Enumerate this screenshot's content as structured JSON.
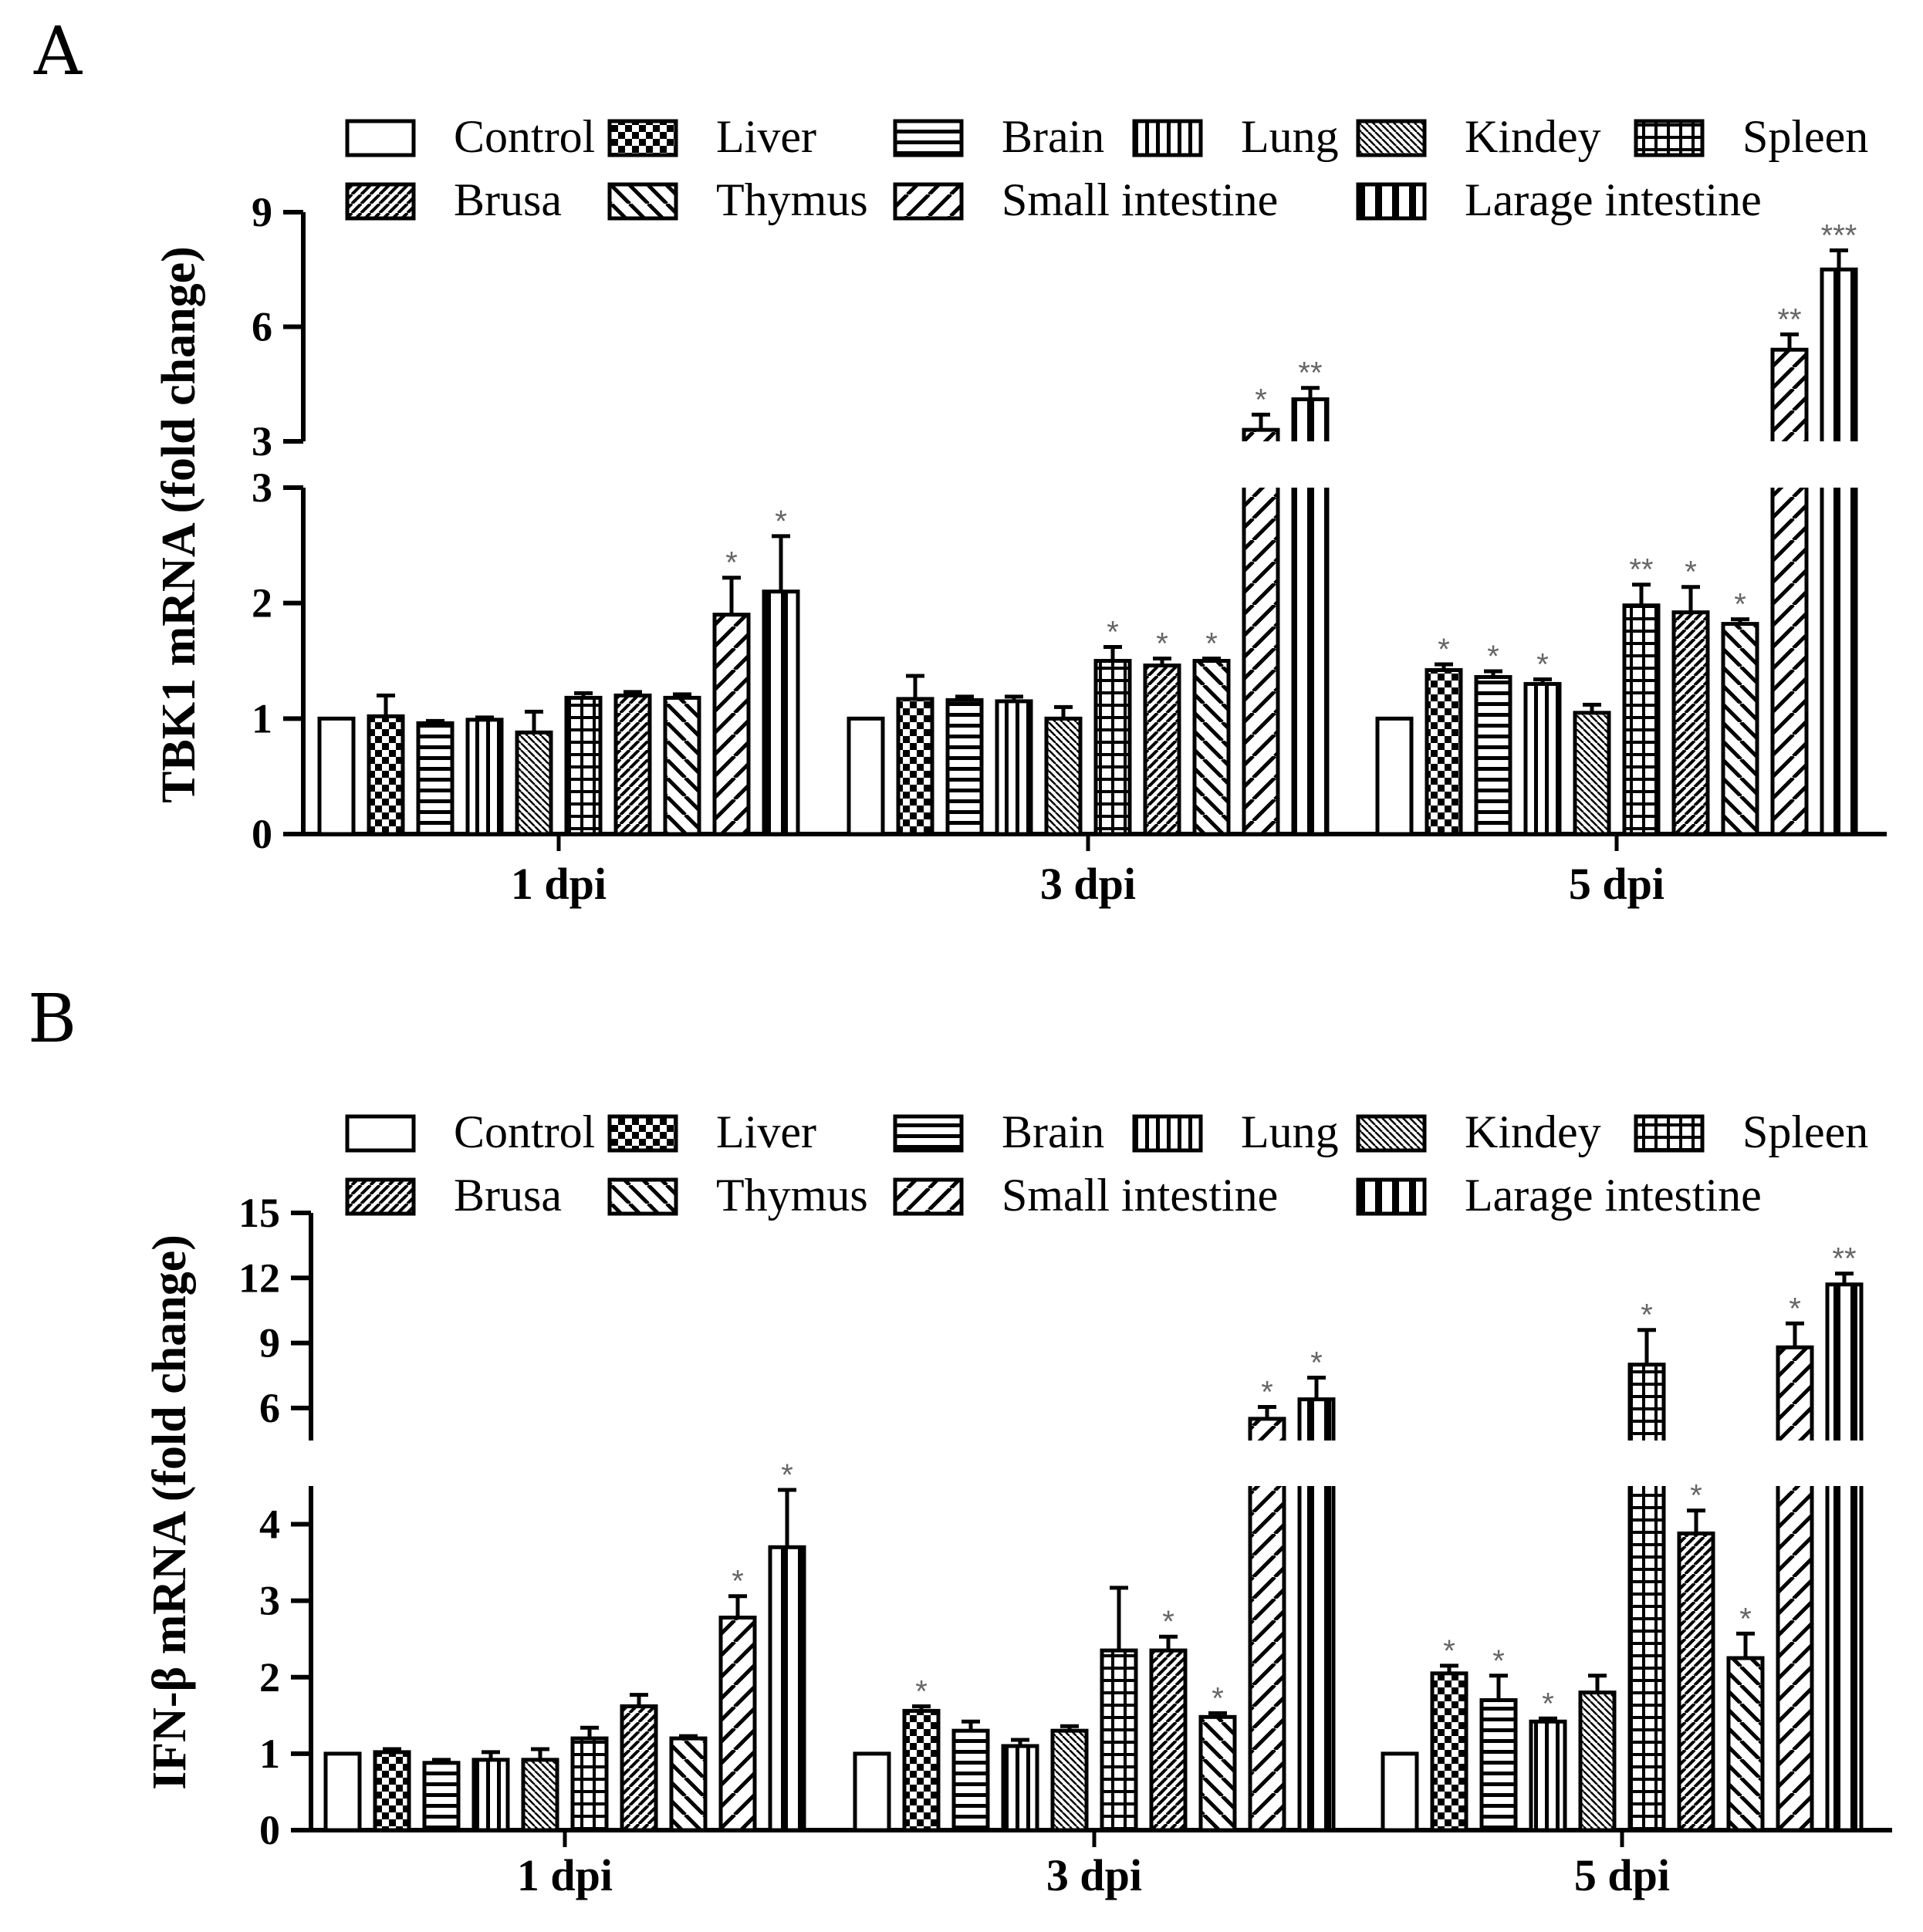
{
  "categories": [
    "1 dpi",
    "3 dpi",
    "5 dpi"
  ],
  "legend": [
    {
      "name": "Control",
      "pattern": "blank"
    },
    {
      "name": "Liver",
      "pattern": "checker"
    },
    {
      "name": "Brain",
      "pattern": "hlines"
    },
    {
      "name": "Lung",
      "pattern": "vlines"
    },
    {
      "name": "Kindey",
      "pattern": "diagfine"
    },
    {
      "name": "Spleen",
      "pattern": "grid"
    },
    {
      "name": "Brusa",
      "pattern": "diagdense"
    },
    {
      "name": "Thymus",
      "pattern": "back"
    },
    {
      "name": "Small intestine",
      "pattern": "fwd"
    },
    {
      "name": "Larage intestine",
      "pattern": "vthick"
    }
  ],
  "chart_data": [
    {
      "panel": "A",
      "type": "bar",
      "ylabel": "TBK1 mRNA (fold change)",
      "categories": [
        "1 dpi",
        "3 dpi",
        "5 dpi"
      ],
      "lower_axis": {
        "ylim": [
          0,
          3
        ],
        "ticks": [
          "0",
          "1",
          "2",
          "3"
        ]
      },
      "upper_axis": {
        "ylim": [
          3,
          9
        ],
        "ticks": [
          "3",
          "6",
          "9"
        ]
      },
      "series": [
        {
          "name": "Control",
          "values": [
            1.0,
            1.0,
            1.0
          ],
          "errors": [
            0,
            0,
            0
          ],
          "sig": [
            "",
            "",
            ""
          ]
        },
        {
          "name": "Liver",
          "values": [
            1.02,
            1.17,
            1.42
          ],
          "errors": [
            0.18,
            0.2,
            0.05
          ],
          "sig": [
            "",
            "",
            "*"
          ]
        },
        {
          "name": "Brain",
          "values": [
            0.96,
            1.16,
            1.36
          ],
          "errors": [
            0.02,
            0.03,
            0.05
          ],
          "sig": [
            "",
            "",
            "*"
          ]
        },
        {
          "name": "Lung",
          "values": [
            0.99,
            1.15,
            1.3
          ],
          "errors": [
            0.02,
            0.04,
            0.04
          ],
          "sig": [
            "",
            "",
            "*"
          ]
        },
        {
          "name": "Kindey",
          "values": [
            0.88,
            1.0,
            1.05
          ],
          "errors": [
            0.18,
            0.1,
            0.07
          ],
          "sig": [
            "",
            "",
            ""
          ]
        },
        {
          "name": "Spleen",
          "values": [
            1.18,
            1.5,
            1.98
          ],
          "errors": [
            0.04,
            0.12,
            0.18
          ],
          "sig": [
            "",
            "*",
            "**"
          ]
        },
        {
          "name": "Brusa",
          "values": [
            1.2,
            1.46,
            1.92
          ],
          "errors": [
            0.03,
            0.06,
            0.22
          ],
          "sig": [
            "",
            "*",
            "*"
          ]
        },
        {
          "name": "Thymus",
          "values": [
            1.18,
            1.5,
            1.82
          ],
          "errors": [
            0.03,
            0.02,
            0.04
          ],
          "sig": [
            "",
            "*",
            "*"
          ]
        },
        {
          "name": "Small intestine",
          "values": [
            1.9,
            3.3,
            5.4
          ],
          "errors": [
            0.32,
            0.4,
            0.4
          ],
          "sig": [
            "*",
            "*",
            "**"
          ]
        },
        {
          "name": "Larage intestine",
          "values": [
            2.1,
            4.1,
            7.5
          ],
          "errors": [
            0.48,
            0.3,
            0.5
          ],
          "sig": [
            "*",
            "**",
            "***"
          ]
        }
      ]
    },
    {
      "panel": "B",
      "type": "bar",
      "ylabel": "IFN-β mRNA (fold change)",
      "categories": [
        "1 dpi",
        "3 dpi",
        "5 dpi"
      ],
      "lower_axis": {
        "ylim": [
          0,
          4.5
        ],
        "ticks": [
          "0",
          "1",
          "2",
          "3",
          "4"
        ]
      },
      "upper_axis": {
        "ylim": [
          4.5,
          15
        ],
        "ticks": [
          "6",
          "9",
          "12",
          "15"
        ]
      },
      "series": [
        {
          "name": "Control",
          "values": [
            1.0,
            1.0,
            1.0
          ],
          "errors": [
            0,
            0,
            0
          ],
          "sig": [
            "",
            "",
            ""
          ]
        },
        {
          "name": "Liver",
          "values": [
            1.02,
            1.56,
            2.05
          ],
          "errors": [
            0.04,
            0.06,
            0.1
          ],
          "sig": [
            "",
            "*",
            "*"
          ]
        },
        {
          "name": "Brain",
          "values": [
            0.88,
            1.3,
            1.7
          ],
          "errors": [
            0.04,
            0.12,
            0.32
          ],
          "sig": [
            "",
            "",
            "*"
          ]
        },
        {
          "name": "Lung",
          "values": [
            0.92,
            1.1,
            1.42
          ],
          "errors": [
            0.1,
            0.08,
            0.04
          ],
          "sig": [
            "",
            "",
            "*"
          ]
        },
        {
          "name": "Kindey",
          "values": [
            0.92,
            1.3,
            1.8
          ],
          "errors": [
            0.14,
            0.06,
            0.22
          ],
          "sig": [
            "",
            "",
            ""
          ]
        },
        {
          "name": "Spleen",
          "values": [
            1.2,
            2.35,
            8.0
          ],
          "errors": [
            0.14,
            0.82,
            1.6
          ],
          "sig": [
            "",
            "",
            "*"
          ]
        },
        {
          "name": "Brusa",
          "values": [
            1.62,
            2.35,
            3.88
          ],
          "errors": [
            0.15,
            0.18,
            0.3
          ],
          "sig": [
            "",
            "*",
            "*"
          ]
        },
        {
          "name": "Thymus",
          "values": [
            1.2,
            1.48,
            2.25
          ],
          "errors": [
            0.03,
            0.05,
            0.32
          ],
          "sig": [
            "",
            "*",
            "*"
          ]
        },
        {
          "name": "Small intestine",
          "values": [
            2.78,
            5.5,
            8.8
          ],
          "errors": [
            0.28,
            0.55,
            1.1
          ],
          "sig": [
            "*",
            "*",
            "*"
          ]
        },
        {
          "name": "Larage intestine",
          "values": [
            3.7,
            6.4,
            11.7
          ],
          "errors": [
            0.75,
            1.0,
            0.5
          ],
          "sig": [
            "*",
            "*",
            "**"
          ]
        }
      ]
    }
  ]
}
